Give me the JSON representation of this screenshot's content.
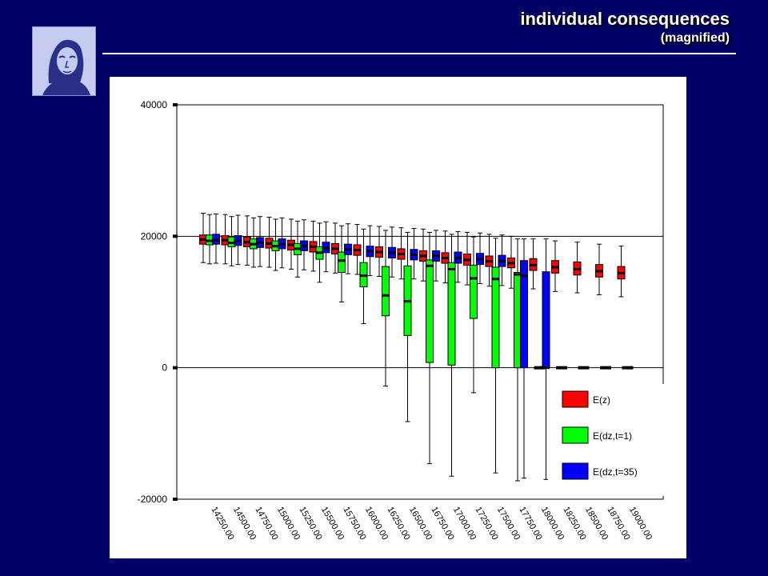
{
  "slide": {
    "title": "individual consequences",
    "subtitle": "(magnified)"
  },
  "logo": {
    "icon": "goethe-portrait-icon"
  },
  "colors": {
    "background": "#000066",
    "e_z": "#ff0000",
    "e_dz_t1": "#00ff00",
    "e_dz_t35": "#0000ff"
  },
  "chart_data": {
    "type": "boxplot",
    "ylim": [
      -20000,
      40000
    ],
    "yticks": [
      "40000",
      "20000",
      "0",
      "-20000"
    ],
    "ytick_values": [
      40000,
      20000,
      0,
      -20000
    ],
    "grid": "horizontal lines at 20000 and 0",
    "legend_position": "bottom-right",
    "categories": [
      "14250.00",
      "14500.00",
      "14750.00",
      "15000.00",
      "15250.00",
      "15500.00",
      "15750.00",
      "16000.00",
      "16250.00",
      "16500.00",
      "16750.00",
      "17000.00",
      "17250.00",
      "17500.00",
      "17750.00",
      "18000.00",
      "18250.00",
      "18500.00",
      "18750.00",
      "19000.00"
    ],
    "series": [
      {
        "name": "E(z)",
        "color": "#ff0000",
        "boxes": [
          [
            16000,
            18800,
            19500,
            20200,
            23500
          ],
          [
            15800,
            18700,
            19400,
            20100,
            23300
          ],
          [
            15600,
            18400,
            19100,
            19900,
            23100
          ],
          [
            15300,
            18200,
            18900,
            19700,
            22900
          ],
          [
            15000,
            17900,
            18700,
            19400,
            22600
          ],
          [
            14700,
            17600,
            18400,
            19200,
            22300
          ],
          [
            14400,
            17300,
            18100,
            18900,
            22000
          ],
          [
            14200,
            17100,
            17900,
            18700,
            21800
          ],
          [
            13900,
            16800,
            17600,
            18400,
            21500
          ],
          [
            13500,
            16500,
            17300,
            18100,
            21300
          ],
          [
            13200,
            16200,
            17000,
            17800,
            21100
          ],
          [
            12900,
            15900,
            16700,
            17500,
            20800
          ],
          [
            12600,
            15600,
            16400,
            17300,
            20600
          ],
          [
            12400,
            15400,
            16200,
            17000,
            20300
          ],
          [
            12100,
            15200,
            15900,
            16700,
            20000
          ],
          [
            12000,
            14800,
            15600,
            16600,
            19600
          ],
          [
            11600,
            14400,
            15300,
            16300,
            19300
          ],
          [
            11400,
            14100,
            15000,
            16100,
            19100
          ],
          [
            11100,
            13800,
            14700,
            15700,
            18800
          ],
          [
            10800,
            13500,
            14400,
            15400,
            18500
          ]
        ]
      },
      {
        "name": "E(dz,t=1)",
        "color": "#00ff00",
        "boxes": [
          [
            15800,
            18700,
            19300,
            20200,
            23300
          ],
          [
            15500,
            18400,
            19000,
            19900,
            23000
          ],
          [
            15300,
            18100,
            18800,
            19600,
            22800
          ],
          [
            14800,
            17800,
            18500,
            19300,
            22600
          ],
          [
            13800,
            17200,
            18100,
            18900,
            22300
          ],
          [
            13000,
            16500,
            17500,
            18400,
            22000
          ],
          [
            10000,
            14500,
            16300,
            17600,
            21600
          ],
          [
            6700,
            12300,
            14000,
            16000,
            21100
          ],
          [
            -2800,
            7900,
            11000,
            15400,
            20900
          ],
          [
            -8200,
            4900,
            10100,
            15500,
            20600
          ],
          [
            -14600,
            800,
            15500,
            16400,
            20600
          ],
          [
            -16500,
            400,
            15000,
            16000,
            20300
          ],
          [
            -3800,
            7500,
            13600,
            15600,
            19900
          ],
          [
            -16000,
            0,
            13500,
            15300,
            19700
          ],
          [
            -17200,
            0,
            14200,
            14500,
            19600
          ],
          null,
          null,
          null,
          null,
          null
        ]
      },
      {
        "name": "E(dz,t=35)",
        "color": "#0000ff",
        "boxes": [
          [
            15900,
            18800,
            19400,
            20300,
            23400
          ],
          [
            15700,
            18600,
            19300,
            20100,
            23200
          ],
          [
            15400,
            18300,
            19000,
            19800,
            23000
          ],
          [
            15200,
            18100,
            18800,
            19600,
            22800
          ],
          [
            14900,
            17800,
            18500,
            19300,
            22500
          ],
          [
            14600,
            17500,
            18200,
            19100,
            22200
          ],
          [
            14300,
            17200,
            18000,
            18800,
            21900
          ],
          [
            14000,
            16900,
            17700,
            18500,
            21600
          ],
          [
            13800,
            16700,
            17500,
            18300,
            21400
          ],
          [
            13500,
            16400,
            17200,
            18000,
            21200
          ],
          [
            13200,
            16200,
            17000,
            17800,
            20900
          ],
          [
            13000,
            15900,
            16700,
            17600,
            20700
          ],
          [
            12800,
            15700,
            16500,
            17400,
            20500
          ],
          [
            12500,
            15400,
            16200,
            17100,
            20200
          ],
          [
            -16800,
            0,
            14000,
            16300,
            19600
          ],
          [
            -17000,
            0,
            0,
            14600,
            19600
          ],
          null,
          null,
          null,
          null
        ]
      }
    ],
    "zero_markers_categories": [
      "18000.00",
      "18250.00",
      "18500.00",
      "18750.00",
      "19000.00"
    ]
  }
}
